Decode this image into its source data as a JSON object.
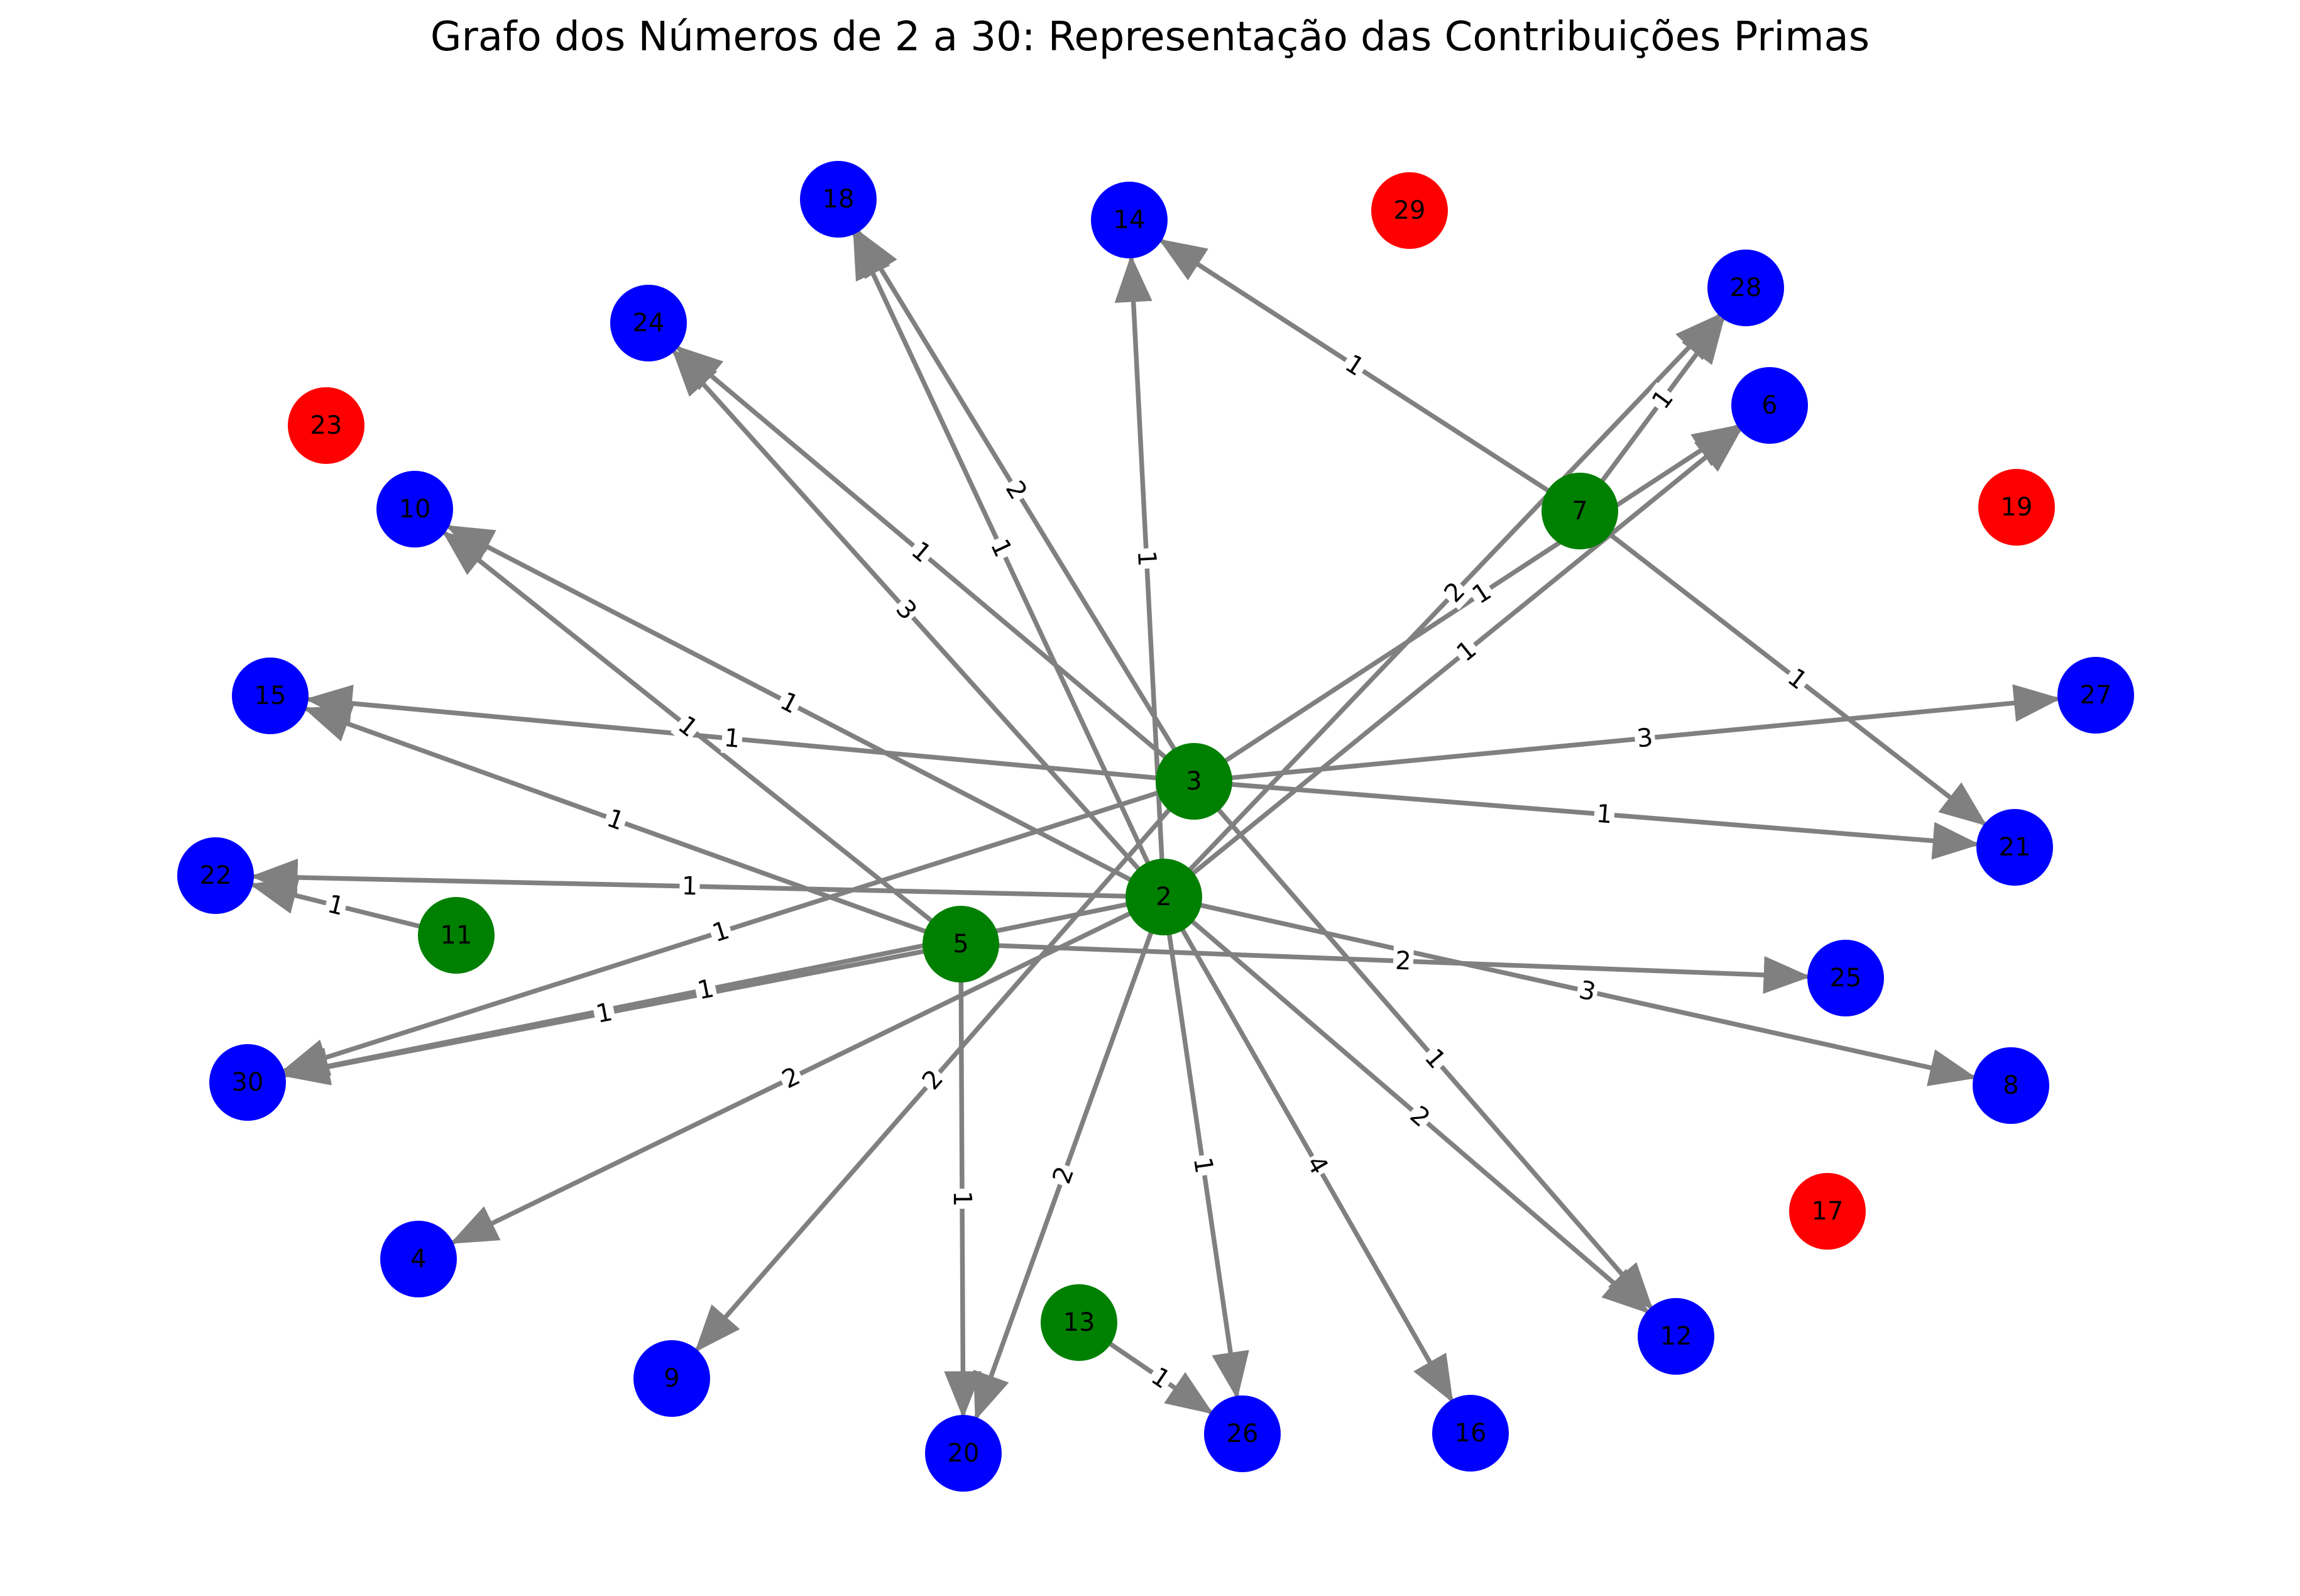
{
  "title": "Grafo dos Números de 2 a 30: Representação das Contribuições Primas",
  "colors": {
    "prime_source": "#008000",
    "composite": "#0000ff",
    "isolated_prime": "#ff0000",
    "edge": "#808080",
    "label_text": "#000000"
  },
  "nodes": [
    {
      "id": "2",
      "kind": "prime_source"
    },
    {
      "id": "3",
      "kind": "prime_source"
    },
    {
      "id": "5",
      "kind": "prime_source"
    },
    {
      "id": "7",
      "kind": "prime_source"
    },
    {
      "id": "11",
      "kind": "prime_source"
    },
    {
      "id": "13",
      "kind": "prime_source"
    },
    {
      "id": "4",
      "kind": "composite"
    },
    {
      "id": "6",
      "kind": "composite"
    },
    {
      "id": "8",
      "kind": "composite"
    },
    {
      "id": "9",
      "kind": "composite"
    },
    {
      "id": "10",
      "kind": "composite"
    },
    {
      "id": "12",
      "kind": "composite"
    },
    {
      "id": "14",
      "kind": "composite"
    },
    {
      "id": "15",
      "kind": "composite"
    },
    {
      "id": "16",
      "kind": "composite"
    },
    {
      "id": "18",
      "kind": "composite"
    },
    {
      "id": "20",
      "kind": "composite"
    },
    {
      "id": "21",
      "kind": "composite"
    },
    {
      "id": "22",
      "kind": "composite"
    },
    {
      "id": "24",
      "kind": "composite"
    },
    {
      "id": "25",
      "kind": "composite"
    },
    {
      "id": "26",
      "kind": "composite"
    },
    {
      "id": "27",
      "kind": "composite"
    },
    {
      "id": "28",
      "kind": "composite"
    },
    {
      "id": "30",
      "kind": "composite"
    },
    {
      "id": "17",
      "kind": "isolated_prime"
    },
    {
      "id": "19",
      "kind": "isolated_prime"
    },
    {
      "id": "23",
      "kind": "isolated_prime"
    },
    {
      "id": "29",
      "kind": "isolated_prime"
    }
  ],
  "edges": [
    {
      "from": "2",
      "to": "4",
      "label": "2"
    },
    {
      "from": "2",
      "to": "6",
      "label": "1"
    },
    {
      "from": "2",
      "to": "8",
      "label": "3"
    },
    {
      "from": "2",
      "to": "10",
      "label": "1"
    },
    {
      "from": "2",
      "to": "12",
      "label": "2"
    },
    {
      "from": "2",
      "to": "14",
      "label": "1"
    },
    {
      "from": "2",
      "to": "16",
      "label": "4"
    },
    {
      "from": "2",
      "to": "18",
      "label": "1"
    },
    {
      "from": "2",
      "to": "20",
      "label": "2"
    },
    {
      "from": "2",
      "to": "22",
      "label": "1"
    },
    {
      "from": "2",
      "to": "24",
      "label": "3"
    },
    {
      "from": "2",
      "to": "26",
      "label": "1"
    },
    {
      "from": "2",
      "to": "28",
      "label": "2"
    },
    {
      "from": "2",
      "to": "30",
      "label": "1"
    },
    {
      "from": "3",
      "to": "6",
      "label": "1"
    },
    {
      "from": "3",
      "to": "9",
      "label": "2"
    },
    {
      "from": "3",
      "to": "12",
      "label": "1"
    },
    {
      "from": "3",
      "to": "15",
      "label": "1"
    },
    {
      "from": "3",
      "to": "18",
      "label": "2"
    },
    {
      "from": "3",
      "to": "21",
      "label": "1"
    },
    {
      "from": "3",
      "to": "24",
      "label": "1"
    },
    {
      "from": "3",
      "to": "27",
      "label": "3"
    },
    {
      "from": "3",
      "to": "30",
      "label": "1"
    },
    {
      "from": "5",
      "to": "10",
      "label": "1"
    },
    {
      "from": "5",
      "to": "15",
      "label": "1"
    },
    {
      "from": "5",
      "to": "20",
      "label": "1"
    },
    {
      "from": "5",
      "to": "25",
      "label": "2"
    },
    {
      "from": "5",
      "to": "30",
      "label": "1"
    },
    {
      "from": "7",
      "to": "14",
      "label": "1"
    },
    {
      "from": "7",
      "to": "21",
      "label": "1"
    },
    {
      "from": "7",
      "to": "28",
      "label": "1"
    },
    {
      "from": "11",
      "to": "22",
      "label": "1"
    },
    {
      "from": "13",
      "to": "26",
      "label": "1"
    }
  ]
}
